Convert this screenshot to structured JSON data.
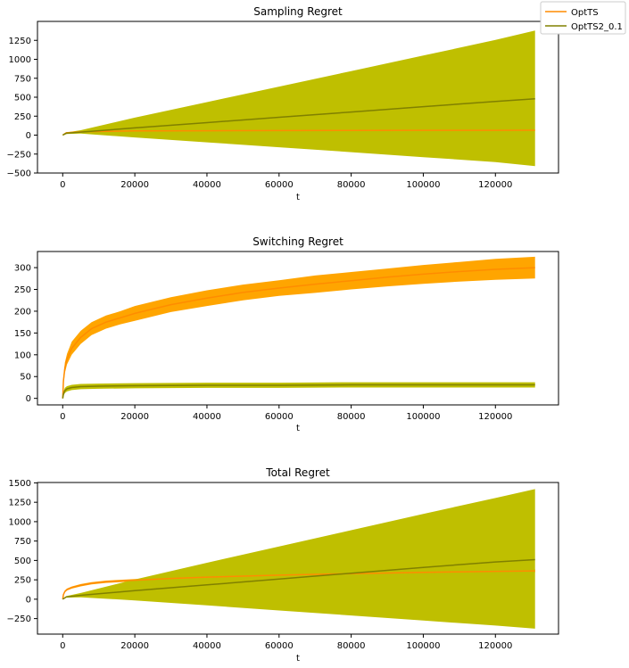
{
  "chart_data": [
    {
      "type": "line",
      "title": "Sampling Regret",
      "xlabel": "t",
      "ylabel": "",
      "xlim": [
        -7000,
        137500
      ],
      "ylim": [
        -500,
        1500
      ],
      "xticks": [
        0,
        20000,
        40000,
        60000,
        80000,
        100000,
        120000
      ],
      "yticks": [
        -500,
        -250,
        0,
        250,
        500,
        750,
        1000,
        1250
      ],
      "series": [
        {
          "name": "OptTS",
          "color": "#ff8c00",
          "band_color": "#ffa500",
          "x": [
            0,
            1000,
            5000,
            20000,
            40000,
            60000,
            80000,
            100000,
            120000,
            131000
          ],
          "y": [
            0,
            30,
            45,
            55,
            58,
            60,
            62,
            63,
            64,
            65
          ],
          "lower": [
            0,
            28,
            42,
            52,
            55,
            57,
            59,
            60,
            61,
            62
          ],
          "upper": [
            0,
            32,
            48,
            58,
            61,
            63,
            65,
            66,
            67,
            68
          ]
        },
        {
          "name": "OptTS2_0.1",
          "color": "#808000",
          "band_color": "#bfbf00",
          "x": [
            0,
            1000,
            5000,
            20000,
            40000,
            60000,
            80000,
            100000,
            120000,
            131000
          ],
          "y": [
            0,
            25,
            40,
            95,
            165,
            235,
            305,
            375,
            445,
            480
          ],
          "lower": [
            0,
            15,
            20,
            -30,
            -95,
            -160,
            -225,
            -290,
            -355,
            -410
          ],
          "upper": [
            0,
            35,
            65,
            230,
            435,
            640,
            845,
            1050,
            1255,
            1380
          ]
        }
      ]
    },
    {
      "type": "line",
      "title": "Switching Regret",
      "xlabel": "t",
      "ylabel": "",
      "xlim": [
        -7000,
        137500
      ],
      "ylim": [
        -15,
        337
      ],
      "xticks": [
        0,
        20000,
        40000,
        60000,
        80000,
        100000,
        120000
      ],
      "yticks": [
        0,
        50,
        100,
        150,
        200,
        250,
        300
      ],
      "series": [
        {
          "name": "OptTS",
          "color": "#ff8c00",
          "band_color": "#ffa500",
          "x": [
            0,
            200,
            600,
            1200,
            2500,
            5000,
            8000,
            12000,
            16000,
            20000,
            30000,
            40000,
            50000,
            60000,
            70000,
            80000,
            90000,
            100000,
            110000,
            120000,
            131000
          ],
          "y": [
            0,
            40,
            70,
            90,
            115,
            140,
            160,
            175,
            185,
            195,
            215,
            230,
            243,
            253,
            262,
            270,
            278,
            285,
            291,
            296,
            300
          ],
          "lower": [
            0,
            30,
            58,
            78,
            100,
            125,
            145,
            160,
            170,
            178,
            198,
            212,
            225,
            235,
            242,
            250,
            257,
            263,
            268,
            272,
            275
          ],
          "upper": [
            0,
            50,
            82,
            102,
            130,
            155,
            175,
            190,
            200,
            212,
            232,
            248,
            261,
            271,
            282,
            290,
            298,
            306,
            313,
            320,
            325
          ]
        },
        {
          "name": "OptTS2_0.1",
          "color": "#808000",
          "band_color": "#bfbf00",
          "x": [
            0,
            200,
            600,
            1200,
            2500,
            5000,
            10000,
            20000,
            40000,
            60000,
            80000,
            100000,
            120000,
            131000
          ],
          "y": [
            0,
            10,
            18,
            22,
            25,
            27,
            28,
            29,
            30,
            30,
            31,
            31,
            31,
            31
          ],
          "lower": [
            0,
            5,
            12,
            16,
            19,
            21,
            22,
            23,
            24,
            24,
            25,
            25,
            25,
            25
          ],
          "upper": [
            0,
            15,
            24,
            28,
            31,
            33,
            34,
            35,
            36,
            36,
            37,
            37,
            37,
            37
          ]
        }
      ]
    },
    {
      "type": "line",
      "title": "Total Regret",
      "xlabel": "t",
      "ylabel": "",
      "xlim": [
        -7000,
        137500
      ],
      "ylim": [
        -450,
        1505
      ],
      "xticks": [
        0,
        20000,
        40000,
        60000,
        80000,
        100000,
        120000
      ],
      "yticks": [
        -250,
        0,
        250,
        500,
        750,
        1000,
        1250,
        1500
      ],
      "series": [
        {
          "name": "OptTS",
          "color": "#ff8c00",
          "band_color": "#ffa500",
          "x": [
            0,
            200,
            600,
            1200,
            2500,
            5000,
            8000,
            12000,
            16000,
            20000,
            30000,
            40000,
            50000,
            60000,
            70000,
            80000,
            90000,
            100000,
            110000,
            120000,
            131000
          ],
          "y": [
            0,
            60,
            100,
            125,
            150,
            180,
            205,
            225,
            235,
            245,
            268,
            285,
            298,
            310,
            320,
            330,
            338,
            346,
            353,
            360,
            365
          ],
          "lower": [
            0,
            50,
            88,
            112,
            136,
            165,
            190,
            210,
            220,
            230,
            252,
            268,
            280,
            292,
            301,
            310,
            317,
            324,
            330,
            336,
            340
          ],
          "upper": [
            0,
            70,
            112,
            138,
            164,
            195,
            220,
            240,
            250,
            260,
            284,
            302,
            316,
            328,
            339,
            350,
            359,
            368,
            376,
            384,
            390
          ]
        },
        {
          "name": "OptTS2_0.1",
          "color": "#808000",
          "band_color": "#bfbf00",
          "x": [
            0,
            1000,
            5000,
            20000,
            40000,
            60000,
            80000,
            100000,
            120000,
            131000
          ],
          "y": [
            0,
            30,
            50,
            110,
            185,
            260,
            335,
            410,
            480,
            510
          ],
          "lower": [
            0,
            20,
            25,
            -15,
            -80,
            -145,
            -210,
            -275,
            -340,
            -380
          ],
          "upper": [
            0,
            40,
            80,
            255,
            470,
            680,
            890,
            1100,
            1305,
            1420
          ]
        }
      ]
    }
  ],
  "legend": {
    "items": [
      {
        "label": "OptTS",
        "color": "#ff8c00"
      },
      {
        "label": "OptTS2_0.1",
        "color": "#808000"
      }
    ]
  }
}
